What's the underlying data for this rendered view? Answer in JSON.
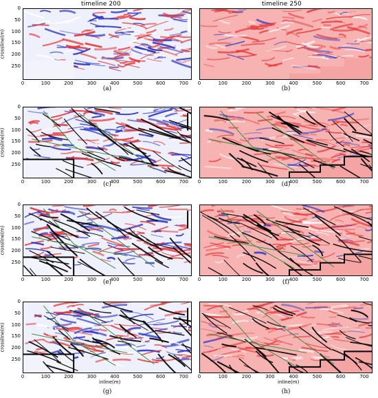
{
  "titles": {
    "left": "timeline 200",
    "right": "timeline 250"
  },
  "axis": {
    "ylabel": "crossline(m)",
    "xlabel": "inline(m)",
    "yticks": [
      "0",
      "50",
      "100",
      "150",
      "200",
      "250"
    ],
    "xticks": [
      "0",
      "100",
      "200",
      "300",
      "400",
      "500",
      "600",
      "700"
    ]
  },
  "labels": [
    "(a)",
    "(b)",
    "(c)",
    "(d)",
    "(e)",
    "(f)",
    "(g)",
    "(h)"
  ],
  "colors": {
    "red": "#e6393b",
    "blue": "#2a33c8",
    "pink": "#f6b3b1",
    "paleblue": "#eef0fb",
    "fault": "#000000",
    "green": "#3a8a3f"
  }
}
